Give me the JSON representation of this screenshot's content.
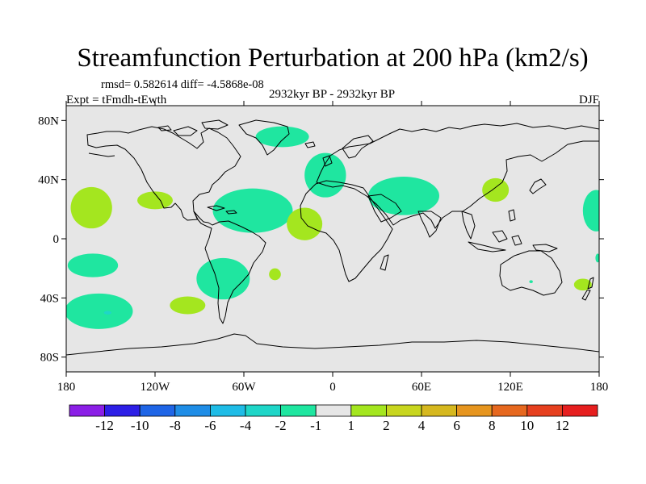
{
  "chart_data": {
    "type": "heatmap",
    "title": "Streamfunction Perturbation at 200 hPa (km2/s)",
    "stats_text": "rmsd= 0.582614 diff= -4.5868e-08",
    "experiment_text": "Expt = tFmdh-tEwth",
    "period_text": "2932kyr BP - 2932kyr BP",
    "season_text": "DJF",
    "x_ticks": [
      {
        "lon": -180,
        "label": "180"
      },
      {
        "lon": -120,
        "label": "120W"
      },
      {
        "lon": -60,
        "label": "60W"
      },
      {
        "lon": 0,
        "label": "0"
      },
      {
        "lon": 60,
        "label": "60E"
      },
      {
        "lon": 120,
        "label": "120E"
      },
      {
        "lon": 180,
        "label": "180"
      }
    ],
    "y_ticks": [
      {
        "lat": 80,
        "label": "80N"
      },
      {
        "lat": 40,
        "label": "40N"
      },
      {
        "lat": 0,
        "label": "0"
      },
      {
        "lat": -40,
        "label": "40S"
      },
      {
        "lat": -80,
        "label": "80S"
      }
    ],
    "lon_range": [
      -180,
      180
    ],
    "lat_range": [
      -90,
      90
    ],
    "colorbar": {
      "colors": [
        "#8b1fe6",
        "#2d1fe6",
        "#1f65e6",
        "#1f8de6",
        "#1fbce6",
        "#1fd6c8",
        "#1fe6a0",
        "#e6e6e6",
        "#a4e61f",
        "#c8d61f",
        "#d6b81f",
        "#e6951f",
        "#e6681f",
        "#e6401f",
        "#e61f1f"
      ],
      "labels": [
        "-12",
        "-10",
        "-8",
        "-6",
        "-4",
        "-2",
        "-1",
        "1",
        "2",
        "4",
        "6",
        "8",
        "10",
        "12"
      ]
    },
    "background_color": "#e6e6e6",
    "anomaly_regions": [
      {
        "lon": -74,
        "lat": -27,
        "rlon": 18,
        "rlat": 14,
        "value": -1.5
      },
      {
        "lon": 48,
        "lat": 29,
        "rlon": 24,
        "rlat": 13,
        "value": -1.5
      },
      {
        "lon": -54,
        "lat": 19,
        "rlon": 27,
        "rlat": 15,
        "value": -1.5
      },
      {
        "lon": -158,
        "lat": -49,
        "rlon": 23,
        "rlat": 12,
        "value": -1.5
      },
      {
        "lon": -162,
        "lat": -18,
        "rlon": 17,
        "rlat": 8,
        "value": -1.5
      },
      {
        "lon": -5,
        "lat": 43,
        "rlon": 14,
        "rlat": 15,
        "value": -1.5
      },
      {
        "lon": -34,
        "lat": 69,
        "rlon": 18,
        "rlat": 7,
        "value": -1.5
      },
      {
        "lon": 178,
        "lat": 19,
        "rlon": 9,
        "rlat": 14,
        "value": -1.5
      },
      {
        "lon": -163,
        "lat": 21,
        "rlon": 14,
        "rlat": 14,
        "value": 1.5
      },
      {
        "lon": -120,
        "lat": 26,
        "rlon": 12,
        "rlat": 6,
        "value": 1.5
      },
      {
        "lon": -19,
        "lat": 10,
        "rlon": 12,
        "rlat": 11,
        "value": 1.5
      },
      {
        "lon": -98,
        "lat": -45,
        "rlon": 12,
        "rlat": 6,
        "value": 1.5
      },
      {
        "lon": -39,
        "lat": -24,
        "rlon": 4,
        "rlat": 4,
        "value": 1.5
      },
      {
        "lon": 110,
        "lat": 33,
        "rlon": 9,
        "rlat": 8,
        "value": 1.5
      },
      {
        "lon": 169,
        "lat": -31,
        "rlon": 6,
        "rlat": 4,
        "value": 1.5
      }
    ],
    "small_patches": [
      {
        "lon": -152,
        "lat": -50,
        "rlon": 2.5,
        "rlat": 1.2,
        "value": -2.5
      },
      {
        "lon": 134,
        "lat": -29,
        "rlon": 1.2,
        "rlat": 1,
        "value": -1.5
      },
      {
        "lon": 179,
        "lat": -13,
        "rlon": 1.5,
        "rlat": 3,
        "value": -1.5
      }
    ]
  }
}
